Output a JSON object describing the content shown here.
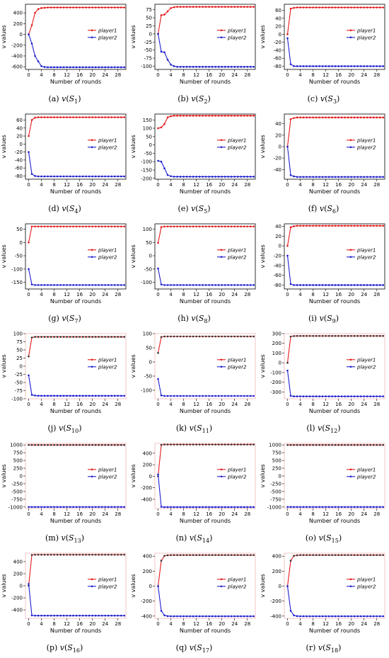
{
  "panel_captions": [
    {
      "letter": "(a)",
      "func": "v",
      "sub": "1"
    },
    {
      "letter": "(b)",
      "func": "v",
      "sub": "2"
    },
    {
      "letter": "(c)",
      "func": "v",
      "sub": "3"
    },
    {
      "letter": "(d)",
      "func": "v",
      "sub": "4"
    },
    {
      "letter": "(e)",
      "func": "v",
      "sub": "5"
    },
    {
      "letter": "(f)",
      "func": "v",
      "sub": "6"
    },
    {
      "letter": "(g)",
      "func": "v",
      "sub": "7"
    },
    {
      "letter": "(h)",
      "func": "v",
      "sub": "8"
    },
    {
      "letter": "(i)",
      "func": "v",
      "sub": "9"
    },
    {
      "letter": "(j)",
      "func": "v",
      "sub": "10"
    },
    {
      "letter": "(k)",
      "func": "v",
      "sub": "11"
    },
    {
      "letter": "(l)",
      "func": "v",
      "sub": "12"
    },
    {
      "letter": "(m)",
      "func": "v",
      "sub": "13"
    },
    {
      "letter": "(n)",
      "func": "v",
      "sub": "14"
    },
    {
      "letter": "(o)",
      "func": "v",
      "sub": "15"
    },
    {
      "letter": "(p)",
      "func": "v",
      "sub": "16"
    },
    {
      "letter": "(q)",
      "func": "v",
      "sub": "17"
    },
    {
      "letter": "(r)",
      "func": "v",
      "sub": "18"
    }
  ],
  "colors": {
    "player1": "#e41a1c",
    "player2": "#1f1fcf",
    "marker_dark": "#333333",
    "frame": "#000000",
    "frame_red": "#f4b6b6"
  },
  "chart_data": [
    {
      "type": "line",
      "xlabel": "Number of rounds",
      "ylabel": "v values",
      "x_ticks": [
        0,
        4,
        8,
        12,
        16,
        20,
        24,
        28
      ],
      "xlim": [
        -1,
        30.5
      ],
      "y_ticks": [
        -600,
        -400,
        -200,
        0,
        200,
        400
      ],
      "ylim": [
        -650,
        560
      ],
      "series": [
        {
          "name": "player1",
          "start": 0,
          "curve": [
            0,
            170,
            400,
            470,
            490,
            495
          ],
          "final": 500
        },
        {
          "name": "player2",
          "start": 0,
          "curve": [
            0,
            -170,
            -400,
            -500,
            -590,
            -605
          ],
          "final": -610
        }
      ],
      "legend": "center-right"
    },
    {
      "type": "line",
      "xlabel": "Number of rounds",
      "ylabel": "v values",
      "x_ticks": [
        0,
        4,
        8,
        12,
        16,
        20,
        24,
        28
      ],
      "xlim": [
        -1,
        30.5
      ],
      "y_ticks": [
        -100,
        -75,
        -50,
        -25,
        0,
        25,
        50,
        75
      ],
      "ylim": [
        -110,
        92
      ],
      "series": [
        {
          "name": "player1",
          "start": 0,
          "curve": [
            0,
            58,
            60,
            70,
            80,
            83,
            84
          ],
          "final": 84
        },
        {
          "name": "player2",
          "start": 0,
          "curve": [
            0,
            -55,
            -57,
            -80,
            -95,
            -100
          ],
          "final": -102
        }
      ],
      "legend": "center-right"
    },
    {
      "type": "line",
      "xlabel": "Number of rounds",
      "ylabel": "v values",
      "x_ticks": [
        0,
        4,
        8,
        12,
        16,
        20,
        24,
        28
      ],
      "xlim": [
        -1,
        30.5
      ],
      "y_ticks": [
        -80,
        -60,
        -40,
        -20,
        0,
        20,
        40,
        60
      ],
      "ylim": [
        -88,
        75
      ],
      "series": [
        {
          "name": "player1",
          "start": 0,
          "curve": [
            0,
            64,
            66
          ],
          "final": 67
        },
        {
          "name": "player2",
          "start": -10,
          "curve": [
            -10,
            -75,
            -80
          ],
          "final": -80
        }
      ],
      "legend": "center-right"
    },
    {
      "type": "line",
      "xlabel": "Number of rounds",
      "ylabel": "v values",
      "x_ticks": [
        0,
        4,
        8,
        12,
        16,
        20,
        24,
        28
      ],
      "xlim": [
        -1,
        30.5
      ],
      "y_ticks": [
        -80,
        -60,
        -40,
        -20,
        0,
        20,
        40,
        60
      ],
      "ylim": [
        -88,
        75
      ],
      "series": [
        {
          "name": "player1",
          "start": 20,
          "curve": [
            20,
            60,
            66
          ],
          "final": 67
        },
        {
          "name": "player2",
          "start": -20,
          "curve": [
            -20,
            -75,
            -80
          ],
          "final": -81
        }
      ],
      "legend": "center-right"
    },
    {
      "type": "line",
      "xlabel": "Number of rounds",
      "ylabel": "v values",
      "x_ticks": [
        0,
        4,
        8,
        12,
        16,
        20,
        24,
        28
      ],
      "xlim": [
        -1,
        30.5
      ],
      "y_ticks": [
        -200,
        -150,
        -100,
        -50,
        0,
        50,
        100,
        150
      ],
      "ylim": [
        -205,
        185
      ],
      "series": [
        {
          "name": "player1",
          "start": 100,
          "curve": [
            100,
            105,
            125,
            165,
            172
          ],
          "final": 175
        },
        {
          "name": "player2",
          "start": -95,
          "curve": [
            -95,
            -100,
            -140,
            -180,
            -187
          ],
          "final": -190
        }
      ],
      "legend": "center-right"
    },
    {
      "type": "line",
      "xlabel": "Number of rounds",
      "ylabel": "v values",
      "x_ticks": [
        0,
        4,
        8,
        12,
        16,
        20,
        24,
        28
      ],
      "xlim": [
        -1,
        30.5
      ],
      "y_ticks": [
        -40,
        -20,
        0,
        20,
        40
      ],
      "ylim": [
        -57,
        57
      ],
      "series": [
        {
          "name": "player1",
          "start": 0,
          "curve": [
            0,
            48,
            50
          ],
          "final": 51
        },
        {
          "name": "player2",
          "start": 0,
          "curve": [
            0,
            -50,
            -52
          ],
          "final": -53
        }
      ],
      "legend": "center-right"
    },
    {
      "type": "line",
      "xlabel": "Number of rounds",
      "ylabel": "v values",
      "x_ticks": [
        0,
        4,
        8,
        12,
        16,
        20,
        24,
        28
      ],
      "xlim": [
        -1,
        30.5
      ],
      "y_ticks": [
        -150,
        -100,
        -50,
        0,
        50
      ],
      "ylim": [
        -175,
        70
      ],
      "series": [
        {
          "name": "player1",
          "start": 0,
          "curve": [
            0,
            60
          ],
          "final": 60
        },
        {
          "name": "player2",
          "start": -100,
          "curve": [
            -100,
            -158,
            -160
          ],
          "final": -160
        }
      ],
      "legend": "center-right"
    },
    {
      "type": "line",
      "xlabel": "Number of rounds",
      "ylabel": "v values",
      "x_ticks": [
        0,
        4,
        8,
        12,
        16,
        20,
        24,
        28
      ],
      "xlim": [
        -1,
        30.5
      ],
      "y_ticks": [
        -100,
        -50,
        0,
        50,
        100
      ],
      "ylim": [
        -125,
        120
      ],
      "series": [
        {
          "name": "player1",
          "start": 48,
          "curve": [
            48,
            108,
            110
          ],
          "final": 110
        },
        {
          "name": "player2",
          "start": -48,
          "curve": [
            -48,
            -108,
            -110
          ],
          "final": -110
        }
      ],
      "legend": "center-right"
    },
    {
      "type": "line",
      "xlabel": "Number of rounds",
      "ylabel": "v values",
      "x_ticks": [
        0,
        4,
        8,
        12,
        16,
        20,
        24,
        28
      ],
      "xlim": [
        -1,
        30.5
      ],
      "y_ticks": [
        -80,
        -60,
        -40,
        -20,
        0,
        20,
        40
      ],
      "ylim": [
        -88,
        45
      ],
      "series": [
        {
          "name": "player1",
          "start": 0,
          "curve": [
            0,
            38,
            40
          ],
          "final": 41
        },
        {
          "name": "player2",
          "start": -20,
          "curve": [
            -20,
            -78,
            -80
          ],
          "final": -80
        }
      ],
      "legend": "center-right"
    },
    {
      "type": "line",
      "xlabel": "Number of rounds",
      "ylabel": "v values",
      "x_ticks": [
        0,
        4,
        8,
        12,
        16,
        20,
        24,
        28
      ],
      "xlim": [
        -1,
        30.5
      ],
      "y_ticks": [
        -100,
        -75,
        -50,
        -25,
        0,
        25,
        50,
        75,
        100
      ],
      "ylim": [
        -100,
        100
      ],
      "series": [
        {
          "name": "player1",
          "start": 30,
          "curve": [
            30,
            88,
            90
          ],
          "final": 90
        },
        {
          "name": "player2",
          "start": -28,
          "curve": [
            -28,
            -88,
            -90
          ],
          "final": -91
        }
      ],
      "legend": "center-right"
    },
    {
      "type": "line",
      "xlabel": "Number of rounds",
      "ylabel": "v values",
      "x_ticks": [
        0,
        4,
        8,
        12,
        16,
        20,
        24,
        28
      ],
      "xlim": [
        -1,
        30.5
      ],
      "y_ticks": [
        -100,
        -50,
        0,
        50,
        100
      ],
      "ylim": [
        -130,
        100
      ],
      "series": [
        {
          "name": "player1",
          "start": 32,
          "curve": [
            32,
            88,
            90
          ],
          "final": 90
        },
        {
          "name": "player2",
          "start": -60,
          "curve": [
            -60,
            -118,
            -120
          ],
          "final": -120
        }
      ],
      "legend": "center-right"
    },
    {
      "type": "line",
      "xlabel": "Number of rounds",
      "ylabel": "v values",
      "x_ticks": [
        0,
        4,
        8,
        12,
        16,
        20,
        24,
        28
      ],
      "xlim": [
        -1,
        30.5
      ],
      "y_ticks": [
        -300,
        -200,
        -100,
        0,
        100,
        200,
        300
      ],
      "ylim": [
        -370,
        300
      ],
      "series": [
        {
          "name": "player1",
          "start": 0,
          "curve": [
            0,
            270,
            275
          ],
          "final": 276
        },
        {
          "name": "player2",
          "start": -80,
          "curve": [
            -80,
            -340,
            -345
          ],
          "final": -345
        }
      ],
      "legend": "center-right"
    },
    {
      "type": "line",
      "xlabel": "Number of rounds",
      "ylabel": "v values",
      "x_ticks": [
        0,
        4,
        8,
        12,
        16,
        20,
        24,
        28
      ],
      "xlim": [
        -1,
        30.5
      ],
      "y_ticks": [
        -1000,
        -750,
        -500,
        -250,
        0,
        250,
        500,
        750,
        1000
      ],
      "ylim": [
        -1050,
        1050
      ],
      "series": [
        {
          "name": "player1",
          "start": 1000,
          "curve": [
            1000
          ],
          "final": 1000
        },
        {
          "name": "player2",
          "start": -1000,
          "curve": [
            -1000
          ],
          "final": -1000
        }
      ],
      "legend": "center-right"
    },
    {
      "type": "line",
      "xlabel": "Number of rounds",
      "ylabel": "v values",
      "x_ticks": [
        0,
        4,
        8,
        12,
        16,
        20,
        24,
        28
      ],
      "xlim": [
        -1,
        30.5
      ],
      "y_ticks": [
        -400,
        -200,
        0,
        200,
        400
      ],
      "ylim": [
        -560,
        570
      ],
      "series": [
        {
          "name": "player1",
          "start": 0,
          "curve": [
            0,
            545,
            550
          ],
          "final": 550
        },
        {
          "name": "player2",
          "start": 30,
          "curve": [
            30,
            -530,
            -535
          ],
          "final": -535
        }
      ],
      "legend": "center-right"
    },
    {
      "type": "line",
      "xlabel": "Number of rounds",
      "ylabel": "v values",
      "x_ticks": [
        0,
        4,
        8,
        12,
        16,
        20,
        24,
        28
      ],
      "xlim": [
        -1,
        30.5
      ],
      "y_ticks": [
        -1000,
        -750,
        -500,
        -250,
        0,
        250,
        500,
        750,
        1000
      ],
      "ylim": [
        -1050,
        1050
      ],
      "series": [
        {
          "name": "player1",
          "start": 1000,
          "curve": [
            1000
          ],
          "final": 1000
        },
        {
          "name": "player2",
          "start": -1000,
          "curve": [
            -1000
          ],
          "final": -1000
        }
      ],
      "legend": "center-right"
    },
    {
      "type": "line",
      "xlabel": "Number of rounds",
      "ylabel": "v values",
      "x_ticks": [
        0,
        4,
        8,
        12,
        16,
        20,
        24,
        28
      ],
      "xlim": [
        -1,
        30.5
      ],
      "y_ticks": [
        -400,
        -200,
        0,
        200,
        400
      ],
      "ylim": [
        -540,
        540
      ],
      "series": [
        {
          "name": "player1",
          "start": 0,
          "curve": [
            0,
            510,
            515
          ],
          "final": 515
        },
        {
          "name": "player2",
          "start": 30,
          "curve": [
            30,
            -490,
            -495
          ],
          "final": -495
        }
      ],
      "legend": "center-right"
    },
    {
      "type": "line",
      "xlabel": "Number of rounds",
      "ylabel": "v values",
      "x_ticks": [
        0,
        4,
        8,
        12,
        16,
        20,
        24,
        28
      ],
      "xlim": [
        -1,
        30.5
      ],
      "y_ticks": [
        -400,
        -200,
        0,
        200,
        400
      ],
      "ylim": [
        -430,
        440
      ],
      "series": [
        {
          "name": "player1",
          "start": 0,
          "curve": [
            0,
            340,
            405,
            412
          ],
          "final": 415
        },
        {
          "name": "player2",
          "start": 0,
          "curve": [
            0,
            -330,
            -390,
            -400
          ],
          "final": -402
        }
      ],
      "legend": "center-right"
    },
    {
      "type": "line",
      "xlabel": "Number of rounds",
      "ylabel": "v values",
      "x_ticks": [
        0,
        4,
        8,
        12,
        16,
        20,
        24,
        28
      ],
      "xlim": [
        -1,
        30.5
      ],
      "y_ticks": [
        -400,
        -200,
        0,
        200,
        400
      ],
      "ylim": [
        -430,
        440
      ],
      "series": [
        {
          "name": "player1",
          "start": 0,
          "curve": [
            0,
            340,
            405,
            412
          ],
          "final": 415
        },
        {
          "name": "player2",
          "start": 0,
          "curve": [
            0,
            -330,
            -390,
            -400
          ],
          "final": -402
        }
      ],
      "legend": "center-right"
    }
  ]
}
